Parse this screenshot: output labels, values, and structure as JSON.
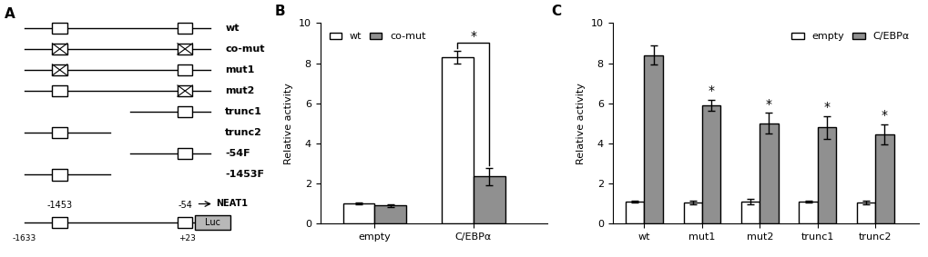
{
  "chart_data": [
    {
      "type": "diagram",
      "title": "A",
      "constructs": [
        {
          "name": "wt",
          "mutated": [
            false,
            false
          ]
        },
        {
          "name": "co-mut",
          "mutated": [
            true,
            true
          ]
        },
        {
          "name": "mut1",
          "mutated": [
            true,
            false
          ]
        },
        {
          "name": "mut2",
          "mutated": [
            false,
            true
          ]
        },
        {
          "name": "trunc1",
          "mutated": [
            null,
            false
          ]
        },
        {
          "name": "trunc2",
          "mutated": [
            false,
            null
          ]
        },
        {
          "name": "-54F",
          "mutated": [
            null,
            false
          ]
        },
        {
          "name": "-1453F",
          "mutated": [
            false,
            null
          ]
        }
      ],
      "reference": {
        "site_labels": [
          "-1453",
          "-54"
        ],
        "end_labels": [
          "-1633",
          "+23"
        ],
        "reporter": "Luc",
        "gene": "NEAT1"
      }
    },
    {
      "type": "bar",
      "title": "B",
      "categories": [
        "empty",
        "C/EBPα"
      ],
      "series": [
        {
          "name": "wt",
          "color": "#ffffff",
          "values": [
            1.0,
            8.3
          ],
          "errors": [
            0.06,
            0.32
          ]
        },
        {
          "name": "co-mut",
          "color": "#909090",
          "values": [
            0.9,
            2.35
          ],
          "errors": [
            0.06,
            0.42
          ]
        }
      ],
      "ylabel": "Relative activity",
      "ylim": [
        0,
        10
      ],
      "yticks": [
        0,
        2,
        4,
        6,
        8,
        10
      ],
      "legend": "upper left",
      "annotations": [
        {
          "text": "*",
          "category": "C/EBPα",
          "between": [
            "wt",
            "co-mut"
          ]
        }
      ]
    },
    {
      "type": "bar",
      "title": "C",
      "categories": [
        "wt",
        "mut1",
        "mut2",
        "trunc1",
        "trunc2"
      ],
      "series": [
        {
          "name": "empty",
          "color": "#ffffff",
          "values": [
            1.1,
            1.05,
            1.1,
            1.1,
            1.05
          ],
          "errors": [
            0.06,
            0.09,
            0.13,
            0.06,
            0.09
          ]
        },
        {
          "name": "C/EBPα",
          "color": "#909090",
          "values": [
            8.4,
            5.9,
            5.0,
            4.8,
            4.45
          ],
          "errors": [
            0.48,
            0.27,
            0.52,
            0.57,
            0.52
          ]
        }
      ],
      "ylabel": "Relative activity",
      "ylim": [
        0,
        10
      ],
      "yticks": [
        0,
        2,
        4,
        6,
        8,
        10
      ],
      "legend": "upper right",
      "annotations": [
        {
          "text": "*",
          "category": "mut1",
          "series": "C/EBPα"
        },
        {
          "text": "*",
          "category": "mut2",
          "series": "C/EBPα"
        },
        {
          "text": "*",
          "category": "trunc1",
          "series": "C/EBPα"
        },
        {
          "text": "*",
          "category": "trunc2",
          "series": "C/EBPα"
        }
      ]
    }
  ]
}
